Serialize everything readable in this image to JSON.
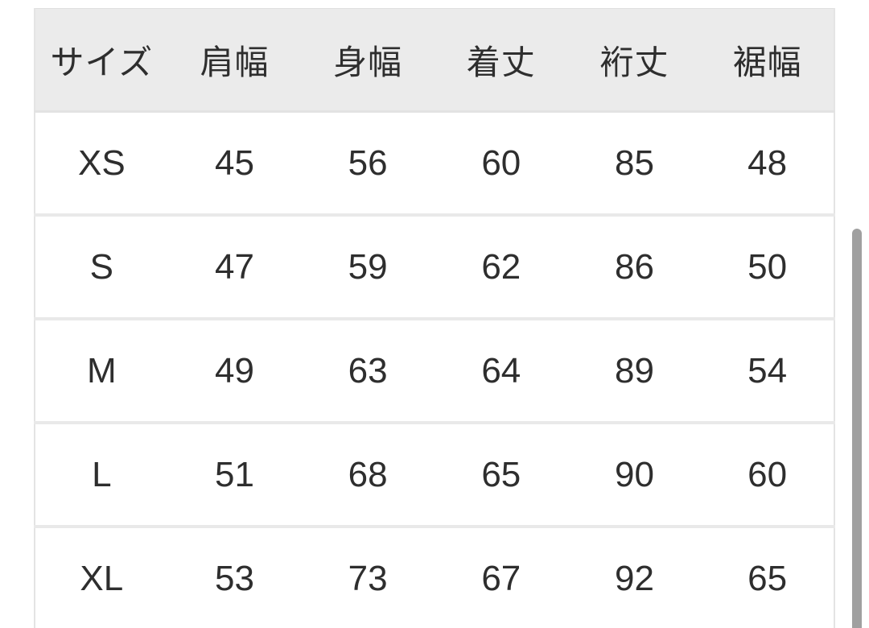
{
  "page": {
    "background_color": "#ffffff"
  },
  "table": {
    "header_background": "#ebebeb",
    "divider_color": "#e9e9e9",
    "text_color": "#2e2e2e",
    "columns": [
      "サイズ",
      "肩幅",
      "身幅",
      "着丈",
      "裄丈",
      "裾幅"
    ],
    "rows": [
      {
        "size": "XS",
        "values": [
          "45",
          "56",
          "60",
          "85",
          "48"
        ]
      },
      {
        "size": "S",
        "values": [
          "47",
          "59",
          "62",
          "86",
          "50"
        ]
      },
      {
        "size": "M",
        "values": [
          "49",
          "63",
          "64",
          "89",
          "54"
        ]
      },
      {
        "size": "L",
        "values": [
          "51",
          "68",
          "65",
          "90",
          "60"
        ]
      },
      {
        "size": "XL",
        "values": [
          "53",
          "73",
          "67",
          "92",
          "65"
        ]
      }
    ]
  },
  "scrollbar": {
    "thumb_color": "#a0a0a0"
  },
  "chart_data": {
    "type": "table",
    "columns": [
      "サイズ",
      "肩幅",
      "身幅",
      "着丈",
      "裄丈",
      "裾幅"
    ],
    "rows": [
      [
        "XS",
        45,
        56,
        60,
        85,
        48
      ],
      [
        "S",
        47,
        59,
        62,
        86,
        50
      ],
      [
        "M",
        49,
        63,
        64,
        89,
        54
      ],
      [
        "L",
        51,
        68,
        65,
        90,
        60
      ],
      [
        "XL",
        53,
        73,
        67,
        92,
        65
      ]
    ]
  }
}
